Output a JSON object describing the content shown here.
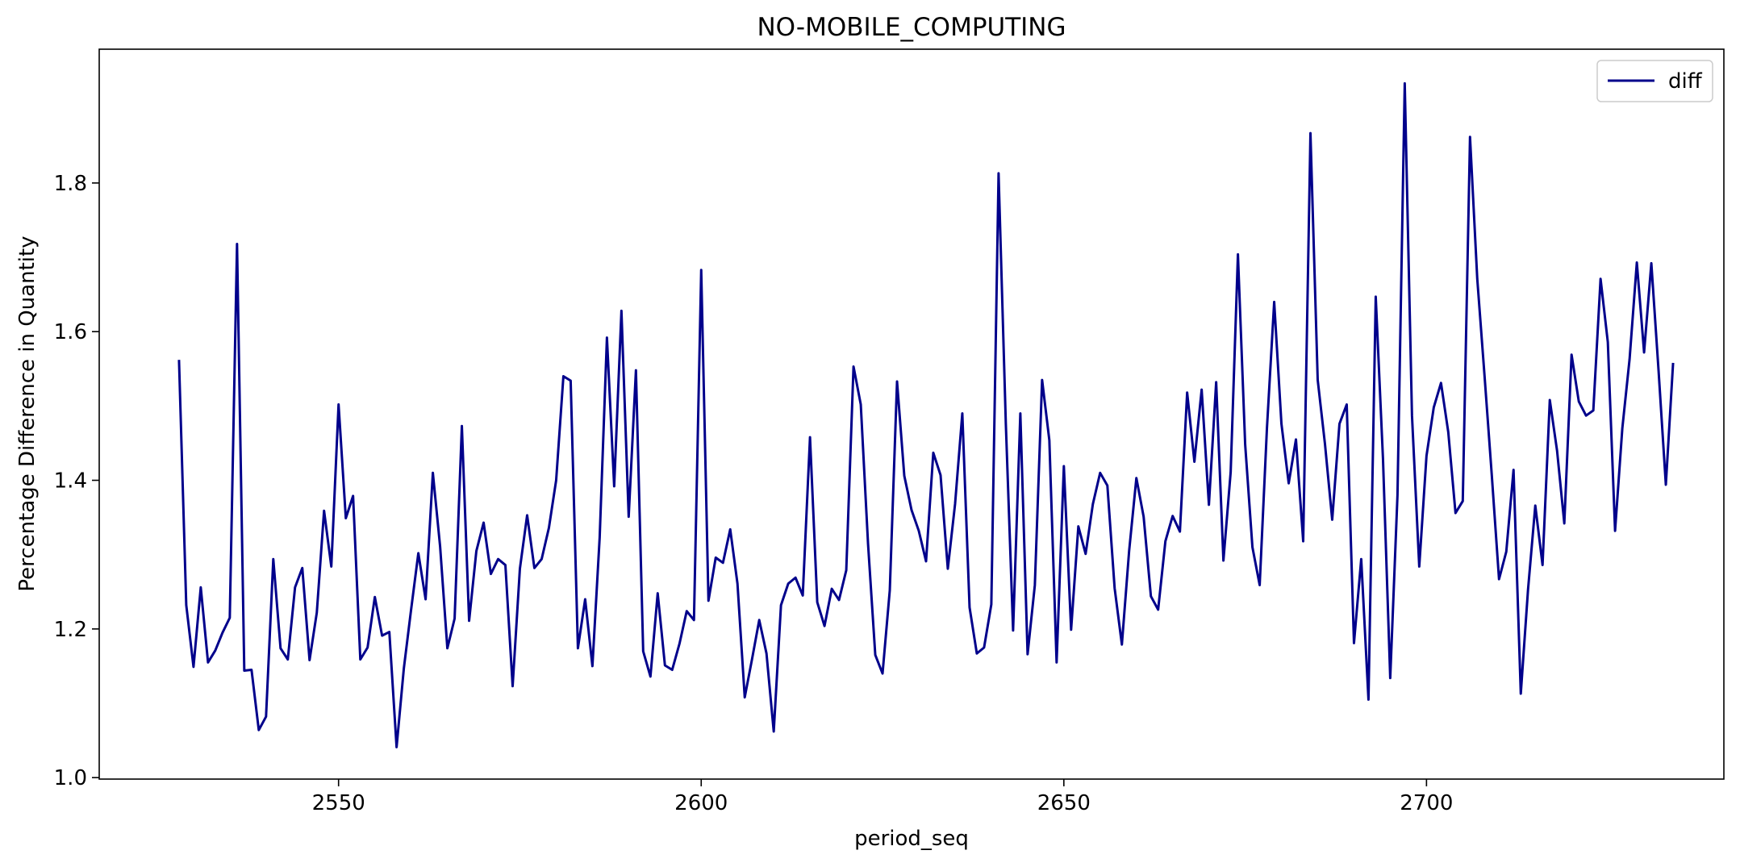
{
  "chart_data": {
    "type": "line",
    "title": "NO-MOBILE_COMPUTING",
    "xlabel": "period_seq",
    "ylabel": "Percentage Difference in Quantity",
    "xlim": [
      2517,
      2741
    ],
    "ylim": [
      0.998,
      1.98
    ],
    "xticks": [
      2550,
      2600,
      2650,
      2700
    ],
    "yticks": [
      1.0,
      1.2,
      1.4,
      1.6,
      1.8
    ],
    "ytick_labels": [
      "1.0",
      "1.2",
      "1.4",
      "1.6",
      "1.8"
    ],
    "grid": false,
    "legend": "upper right",
    "series": [
      {
        "name": "diff",
        "color": "#00008b",
        "x_start": 2528,
        "x_step": 1,
        "values": [
          1.562,
          1.232,
          1.149,
          1.256,
          1.155,
          1.171,
          1.195,
          1.215,
          1.718,
          1.144,
          1.145,
          1.064,
          1.082,
          1.294,
          1.174,
          1.159,
          1.256,
          1.282,
          1.158,
          1.222,
          1.359,
          1.284,
          1.502,
          1.349,
          1.379,
          1.159,
          1.175,
          1.243,
          1.191,
          1.196,
          1.041,
          1.147,
          1.226,
          1.302,
          1.24,
          1.41,
          1.311,
          1.174,
          1.214,
          1.473,
          1.211,
          1.305,
          1.343,
          1.274,
          1.294,
          1.286,
          1.123,
          1.281,
          1.353,
          1.282,
          1.294,
          1.336,
          1.4,
          1.54,
          1.534,
          1.174,
          1.24,
          1.15,
          1.323,
          1.592,
          1.392,
          1.628,
          1.351,
          1.548,
          1.17,
          1.136,
          1.248,
          1.151,
          1.145,
          1.18,
          1.224,
          1.212,
          1.683,
          1.238,
          1.296,
          1.289,
          1.334,
          1.261,
          1.108,
          1.159,
          1.212,
          1.167,
          1.062,
          1.232,
          1.261,
          1.269,
          1.245,
          1.458,
          1.236,
          1.204,
          1.254,
          1.239,
          1.279,
          1.553,
          1.502,
          1.315,
          1.165,
          1.14,
          1.252,
          1.533,
          1.406,
          1.36,
          1.332,
          1.291,
          1.437,
          1.407,
          1.281,
          1.368,
          1.49,
          1.229,
          1.167,
          1.175,
          1.233,
          1.813,
          1.476,
          1.198,
          1.49,
          1.166,
          1.259,
          1.535,
          1.454,
          1.155,
          1.419,
          1.199,
          1.338,
          1.301,
          1.368,
          1.41,
          1.393,
          1.255,
          1.179,
          1.305,
          1.403,
          1.351,
          1.244,
          1.226,
          1.318,
          1.352,
          1.331,
          1.518,
          1.425,
          1.522,
          1.367,
          1.532,
          1.292,
          1.411,
          1.704,
          1.448,
          1.31,
          1.259,
          1.47,
          1.64,
          1.476,
          1.396,
          1.455,
          1.318,
          1.867,
          1.535,
          1.449,
          1.347,
          1.476,
          1.502,
          1.181,
          1.294,
          1.105,
          1.647,
          1.429,
          1.134,
          1.38,
          1.934,
          1.487,
          1.284,
          1.433,
          1.498,
          1.531,
          1.465,
          1.356,
          1.372,
          1.862,
          1.671,
          1.541,
          1.407,
          1.267,
          1.304,
          1.414,
          1.113,
          1.253,
          1.366,
          1.286,
          1.508,
          1.44,
          1.342,
          1.569,
          1.506,
          1.487,
          1.494,
          1.671,
          1.586,
          1.332,
          1.47,
          1.563,
          1.693,
          1.572,
          1.692,
          1.547,
          1.394,
          1.558
        ]
      }
    ]
  }
}
